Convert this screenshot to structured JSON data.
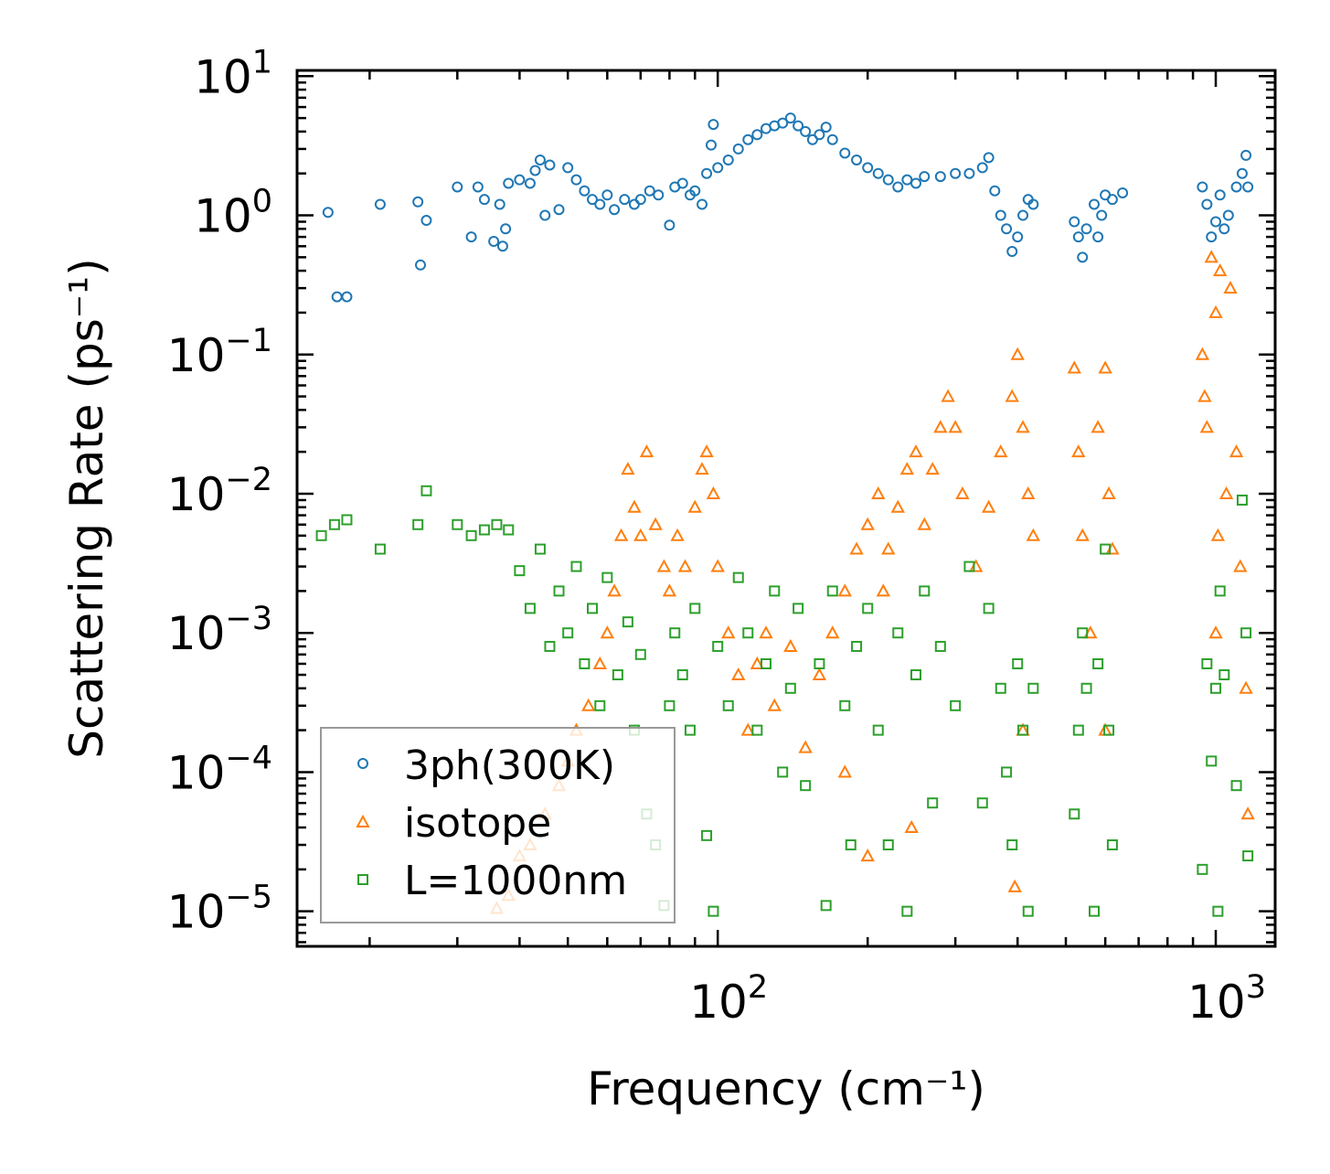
{
  "chart_data": {
    "type": "scatter",
    "title": "",
    "xlabel": "Frequency (cm⁻¹)",
    "ylabel": "Scattering Rate (ps⁻¹)",
    "xscale": "log",
    "yscale": "log",
    "xlim": [
      14.3,
      1316
    ],
    "ylim": [
      5.6e-06,
      11
    ],
    "xticks": [
      {
        "base": "10",
        "exp": "2",
        "value": 100
      },
      {
        "base": "10",
        "exp": "3",
        "value": 1000
      }
    ],
    "yticks": [
      {
        "base": "10",
        "exp": "1",
        "value": 10
      },
      {
        "base": "10",
        "exp": "0",
        "value": 1
      },
      {
        "base": "10",
        "exp": "−1",
        "value": 0.1
      },
      {
        "base": "10",
        "exp": "−2",
        "value": 0.01
      },
      {
        "base": "10",
        "exp": "−3",
        "value": 0.001
      },
      {
        "base": "10",
        "exp": "−4",
        "value": 0.0001
      },
      {
        "base": "10",
        "exp": "−5",
        "value": 1e-05
      }
    ],
    "grid": false,
    "legend_position": "lower-left",
    "series": [
      {
        "name": "3ph(300K)",
        "marker": "circle",
        "color": "#1f77b4",
        "points": [
          [
            16.5,
            1.05
          ],
          [
            17.2,
            0.26
          ],
          [
            18,
            0.26
          ],
          [
            21,
            1.2
          ],
          [
            25,
            1.25
          ],
          [
            25.3,
            0.44
          ],
          [
            26,
            0.92
          ],
          [
            30,
            1.6
          ],
          [
            32,
            0.7
          ],
          [
            33,
            1.6
          ],
          [
            34,
            1.3
          ],
          [
            35.5,
            0.65
          ],
          [
            36.5,
            1.2
          ],
          [
            37,
            0.6
          ],
          [
            37.5,
            0.8
          ],
          [
            38,
            1.7
          ],
          [
            40,
            1.8
          ],
          [
            42,
            1.7
          ],
          [
            43,
            2.1
          ],
          [
            44,
            2.5
          ],
          [
            45,
            1.0
          ],
          [
            46,
            2.3
          ],
          [
            48,
            1.1
          ],
          [
            50,
            2.2
          ],
          [
            52,
            1.8
          ],
          [
            54,
            1.5
          ],
          [
            56,
            1.3
          ],
          [
            58,
            1.2
          ],
          [
            60,
            1.4
          ],
          [
            62,
            1.1
          ],
          [
            65,
            1.3
          ],
          [
            68,
            1.2
          ],
          [
            70,
            1.3
          ],
          [
            73,
            1.5
          ],
          [
            76,
            1.4
          ],
          [
            80,
            0.85
          ],
          [
            82,
            1.6
          ],
          [
            85,
            1.7
          ],
          [
            88,
            1.4
          ],
          [
            90,
            1.5
          ],
          [
            93,
            1.2
          ],
          [
            95,
            2.0
          ],
          [
            97,
            3.2
          ],
          [
            98,
            4.5
          ],
          [
            100,
            2.2
          ],
          [
            105,
            2.5
          ],
          [
            110,
            3.0
          ],
          [
            115,
            3.5
          ],
          [
            120,
            3.8
          ],
          [
            125,
            4.2
          ],
          [
            130,
            4.4
          ],
          [
            135,
            4.6
          ],
          [
            140,
            5.0
          ],
          [
            145,
            4.4
          ],
          [
            150,
            4.0
          ],
          [
            155,
            3.5
          ],
          [
            160,
            3.8
          ],
          [
            165,
            4.3
          ],
          [
            170,
            3.5
          ],
          [
            180,
            2.8
          ],
          [
            190,
            2.5
          ],
          [
            200,
            2.2
          ],
          [
            210,
            2.0
          ],
          [
            220,
            1.8
          ],
          [
            230,
            1.6
          ],
          [
            240,
            1.8
          ],
          [
            250,
            1.7
          ],
          [
            260,
            1.9
          ],
          [
            280,
            1.9
          ],
          [
            300,
            2.0
          ],
          [
            320,
            2.0
          ],
          [
            340,
            2.2
          ],
          [
            350,
            2.6
          ],
          [
            360,
            1.5
          ],
          [
            370,
            1.0
          ],
          [
            380,
            0.8
          ],
          [
            390,
            0.55
          ],
          [
            400,
            0.7
          ],
          [
            410,
            1.0
          ],
          [
            420,
            1.3
          ],
          [
            430,
            1.2
          ],
          [
            520,
            0.9
          ],
          [
            530,
            0.7
          ],
          [
            540,
            0.5
          ],
          [
            550,
            0.8
          ],
          [
            570,
            1.2
          ],
          [
            580,
            0.7
          ],
          [
            590,
            1.0
          ],
          [
            600,
            1.4
          ],
          [
            620,
            1.3
          ],
          [
            650,
            1.45
          ],
          [
            940,
            1.6
          ],
          [
            960,
            1.2
          ],
          [
            980,
            0.7
          ],
          [
            1000,
            0.9
          ],
          [
            1020,
            1.4
          ],
          [
            1040,
            0.8
          ],
          [
            1060,
            1.0
          ],
          [
            1100,
            1.6
          ],
          [
            1130,
            2.0
          ],
          [
            1150,
            2.7
          ],
          [
            1160,
            1.6
          ]
        ]
      },
      {
        "name": "isotope",
        "marker": "triangle",
        "color": "#ff7f0e",
        "points": [
          [
            36,
            1.05e-05
          ],
          [
            38,
            1.3e-05
          ],
          [
            40,
            2.5e-05
          ],
          [
            42,
            3e-05
          ],
          [
            45,
            5e-05
          ],
          [
            48,
            8e-05
          ],
          [
            50,
            0.00012
          ],
          [
            52,
            0.0002
          ],
          [
            55,
            0.0003
          ],
          [
            58,
            0.0006
          ],
          [
            60,
            0.001
          ],
          [
            62,
            0.002
          ],
          [
            64,
            0.005
          ],
          [
            66,
            0.015
          ],
          [
            68,
            0.008
          ],
          [
            70,
            0.005
          ],
          [
            72,
            0.02
          ],
          [
            75,
            0.006
          ],
          [
            78,
            0.003
          ],
          [
            80,
            0.002
          ],
          [
            83,
            0.005
          ],
          [
            86,
            0.003
          ],
          [
            90,
            0.008
          ],
          [
            93,
            0.015
          ],
          [
            95,
            0.02
          ],
          [
            98,
            0.01
          ],
          [
            100,
            0.003
          ],
          [
            105,
            0.001
          ],
          [
            110,
            0.0005
          ],
          [
            115,
            0.0002
          ],
          [
            120,
            0.0006
          ],
          [
            125,
            0.001
          ],
          [
            130,
            0.0003
          ],
          [
            140,
            0.0008
          ],
          [
            150,
            0.00015
          ],
          [
            160,
            0.0005
          ],
          [
            170,
            0.001
          ],
          [
            180,
            0.002
          ],
          [
            190,
            0.004
          ],
          [
            200,
            0.006
          ],
          [
            210,
            0.01
          ],
          [
            215,
            0.002
          ],
          [
            220,
            0.004
          ],
          [
            230,
            0.008
          ],
          [
            240,
            0.015
          ],
          [
            250,
            0.02
          ],
          [
            260,
            0.006
          ],
          [
            270,
            0.015
          ],
          [
            280,
            0.03
          ],
          [
            290,
            0.05
          ],
          [
            300,
            0.03
          ],
          [
            310,
            0.01
          ],
          [
            330,
            0.003
          ],
          [
            350,
            0.008
          ],
          [
            370,
            0.02
          ],
          [
            390,
            0.05
          ],
          [
            400,
            0.1
          ],
          [
            410,
            0.03
          ],
          [
            420,
            0.01
          ],
          [
            430,
            0.005
          ],
          [
            410,
            0.0002
          ],
          [
            520,
            0.08
          ],
          [
            530,
            0.02
          ],
          [
            540,
            0.005
          ],
          [
            560,
            0.001
          ],
          [
            580,
            0.03
          ],
          [
            600,
            0.08
          ],
          [
            610,
            0.01
          ],
          [
            620,
            0.004
          ],
          [
            600,
            0.0002
          ],
          [
            940,
            0.1
          ],
          [
            960,
            0.03
          ],
          [
            980,
            0.5
          ],
          [
            1000,
            0.2
          ],
          [
            1010,
            0.005
          ],
          [
            1020,
            0.4
          ],
          [
            1050,
            0.01
          ],
          [
            1070,
            0.3
          ],
          [
            1100,
            0.02
          ],
          [
            1120,
            0.003
          ],
          [
            1150,
            0.0004
          ],
          [
            1160,
            5e-05
          ],
          [
            1000,
            0.001
          ],
          [
            950,
            0.05
          ],
          [
            200,
            2.5e-05
          ],
          [
            245,
            4e-05
          ],
          [
            395,
            1.5e-05
          ],
          [
            180,
            0.0001
          ]
        ]
      },
      {
        "name": "L=1000nm",
        "marker": "square",
        "color": "#2ca02c",
        "points": [
          [
            16,
            0.005
          ],
          [
            17,
            0.006
          ],
          [
            18,
            0.0065
          ],
          [
            21,
            0.004
          ],
          [
            25,
            0.006
          ],
          [
            26,
            0.0105
          ],
          [
            30,
            0.006
          ],
          [
            32,
            0.005
          ],
          [
            34,
            0.0055
          ],
          [
            36,
            0.006
          ],
          [
            38,
            0.0055
          ],
          [
            40,
            0.0028
          ],
          [
            42,
            0.0015
          ],
          [
            44,
            0.004
          ],
          [
            46,
            0.0008
          ],
          [
            48,
            0.002
          ],
          [
            50,
            0.001
          ],
          [
            52,
            0.003
          ],
          [
            54,
            0.0006
          ],
          [
            56,
            0.0015
          ],
          [
            58,
            0.0003
          ],
          [
            60,
            0.0025
          ],
          [
            63,
            0.0005
          ],
          [
            66,
            0.0012
          ],
          [
            68,
            0.0002
          ],
          [
            70,
            0.0007
          ],
          [
            72,
            5e-05
          ],
          [
            75,
            3e-05
          ],
          [
            78,
            1.1e-05
          ],
          [
            80,
            0.0003
          ],
          [
            82,
            0.001
          ],
          [
            85,
            0.0005
          ],
          [
            88,
            0.0002
          ],
          [
            90,
            0.0015
          ],
          [
            95,
            3.5e-05
          ],
          [
            98,
            1e-05
          ],
          [
            100,
            0.0008
          ],
          [
            105,
            0.0003
          ],
          [
            110,
            0.0025
          ],
          [
            115,
            0.001
          ],
          [
            120,
            0.0002
          ],
          [
            125,
            0.0006
          ],
          [
            130,
            0.002
          ],
          [
            135,
            0.0001
          ],
          [
            140,
            0.0004
          ],
          [
            145,
            0.0015
          ],
          [
            150,
            8e-05
          ],
          [
            160,
            0.0006
          ],
          [
            165,
            1.1e-05
          ],
          [
            170,
            0.002
          ],
          [
            180,
            0.0003
          ],
          [
            185,
            3e-05
          ],
          [
            190,
            0.0008
          ],
          [
            200,
            0.0015
          ],
          [
            210,
            0.0002
          ],
          [
            220,
            3e-05
          ],
          [
            230,
            0.001
          ],
          [
            240,
            1e-05
          ],
          [
            250,
            0.0005
          ],
          [
            260,
            0.002
          ],
          [
            270,
            6e-05
          ],
          [
            280,
            0.0008
          ],
          [
            300,
            0.0003
          ],
          [
            320,
            0.003
          ],
          [
            340,
            6e-05
          ],
          [
            350,
            0.0015
          ],
          [
            370,
            0.0004
          ],
          [
            380,
            0.0001
          ],
          [
            390,
            3e-05
          ],
          [
            400,
            0.0006
          ],
          [
            410,
            0.0002
          ],
          [
            420,
            1e-05
          ],
          [
            430,
            0.0004
          ],
          [
            520,
            5e-05
          ],
          [
            530,
            0.0002
          ],
          [
            540,
            0.001
          ],
          [
            550,
            0.0004
          ],
          [
            570,
            1e-05
          ],
          [
            580,
            0.0006
          ],
          [
            600,
            0.004
          ],
          [
            610,
            0.0002
          ],
          [
            620,
            3e-05
          ],
          [
            940,
            2e-05
          ],
          [
            960,
            0.0006
          ],
          [
            980,
            0.00012
          ],
          [
            1000,
            0.0004
          ],
          [
            1010,
            1e-05
          ],
          [
            1020,
            0.002
          ],
          [
            1040,
            0.0005
          ],
          [
            1100,
            8e-05
          ],
          [
            1130,
            0.009
          ],
          [
            1150,
            0.001
          ],
          [
            1160,
            2.5e-05
          ]
        ]
      }
    ]
  }
}
